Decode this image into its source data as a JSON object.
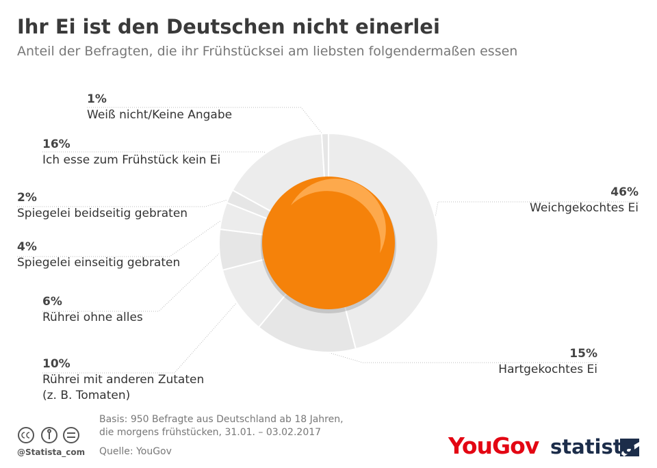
{
  "chart_data": {
    "type": "pie",
    "title": "Ihr Ei ist den Deutschen nicht einerlei",
    "subtitle": "Anteil der Befragten, die ihr Frühstücksei am liebsten folgendermaßen essen",
    "categories": [
      "Weichgekochtes Ei",
      "Hartgekochtes Ei",
      "Rührei mit anderen Zutaten\n(z. B. Tomaten)",
      "Rührei ohne alles",
      "Spiegelei einseitig gebraten",
      "Spiegelei beidseitig gebraten",
      "Ich esse zum Frühstück kein Ei",
      "Weiß nicht/Keine Angabe"
    ],
    "values": [
      46,
      15,
      10,
      6,
      4,
      2,
      16,
      1
    ],
    "value_labels": [
      "46%",
      "15%",
      "10%",
      "6%",
      "4%",
      "2%",
      "16%",
      "1%"
    ],
    "colors": [
      "#ececec",
      "#e6e6e6",
      "#ececec",
      "#e6e6e6",
      "#ececec",
      "#e6e6e6",
      "#ececec",
      "#e6e6e6"
    ],
    "note": [
      "Basis: 950 Befragte aus Deutschland ab 18 Jahren,",
      "die morgens frühstücken, 31.01. – 03.02.2017"
    ],
    "source": "Quelle: YouGov",
    "handle": "@Statista_com",
    "logos": [
      "YouGov",
      "statista"
    ]
  }
}
